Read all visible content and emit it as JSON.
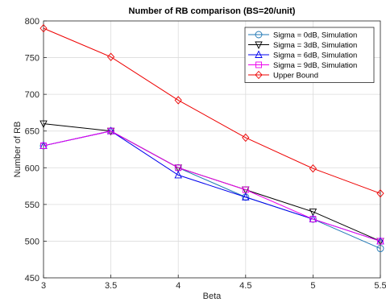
{
  "chart_data": {
    "type": "line",
    "title": "Number of RB comparison (BS=20/unit)",
    "xlabel": "Beta",
    "ylabel": "Number of RB",
    "x": [
      3,
      3.5,
      4,
      4.5,
      5,
      5.5
    ],
    "xlim": [
      3,
      5.5
    ],
    "ylim": [
      450,
      800
    ],
    "xticks": [
      "3",
      "3.5",
      "4",
      "4.5",
      "5",
      "5.5"
    ],
    "yticks": [
      "450",
      "500",
      "550",
      "600",
      "650",
      "700",
      "750",
      "800"
    ],
    "grid": true,
    "legend_position": "top-right",
    "series": [
      {
        "name": "Sigma = 0dB, Simulation",
        "color": "#1f77b4",
        "marker": "circle",
        "values": [
          630,
          650,
          600,
          560,
          530,
          490
        ]
      },
      {
        "name": "Sigma = 3dB, Simulation",
        "color": "#000000",
        "marker": "triangle-down",
        "values": [
          660,
          650,
          600,
          570,
          540,
          500
        ]
      },
      {
        "name": "Sigma = 6dB, Simulation",
        "color": "#0000ee",
        "marker": "triangle-up",
        "values": [
          630,
          650,
          590,
          560,
          530,
          500
        ]
      },
      {
        "name": "Sigma = 9dB, Simulation",
        "color": "#ee00ee",
        "marker": "square",
        "values": [
          630,
          650,
          600,
          570,
          530,
          500
        ]
      },
      {
        "name": "Upper Bound",
        "color": "#ee0000",
        "marker": "diamond",
        "values": [
          790,
          751,
          692,
          641,
          599,
          565
        ]
      }
    ]
  }
}
